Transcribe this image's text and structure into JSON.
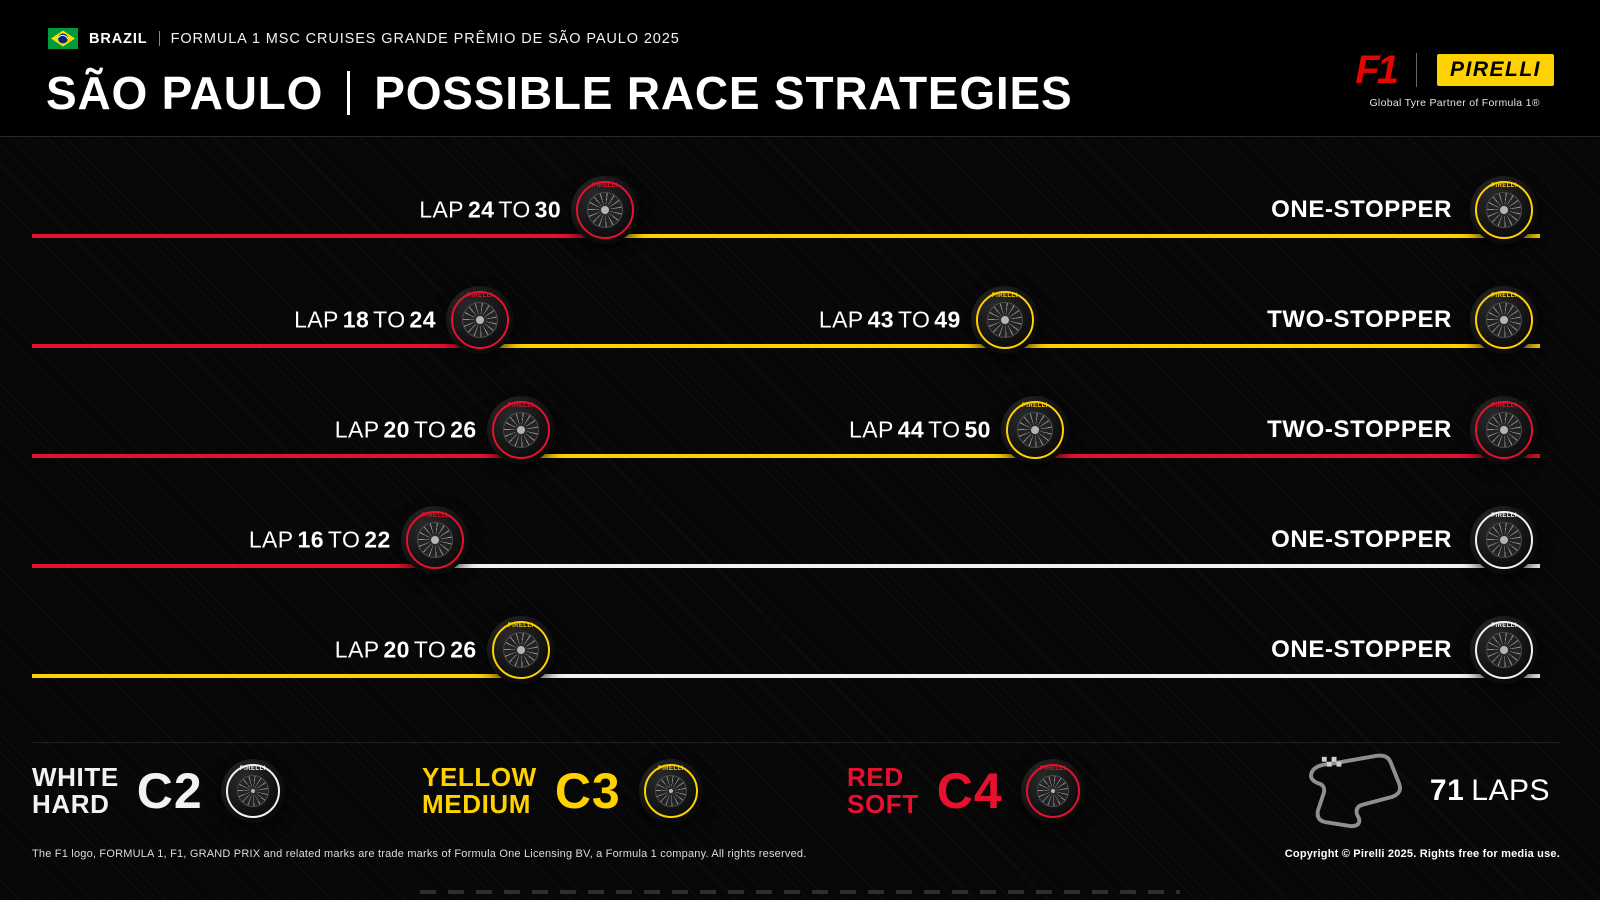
{
  "header": {
    "country": "BRAZIL",
    "event": "FORMULA 1 MSC CRUISES GRANDE PRÊMIO DE SÃO PAULO 2025",
    "location": "SÃO PAULO",
    "headline": "POSSIBLE RACE STRATEGIES",
    "f1_logo": "F1",
    "pirelli_logo": "PIRELLI",
    "partner_line": "Global Tyre Partner of Formula 1®"
  },
  "words": {
    "lap": "LAP",
    "to": "TO"
  },
  "tyre_brand": "PIRELLI",
  "compounds": {
    "soft": {
      "label": "SOFT",
      "color": "#e8112d"
    },
    "medium": {
      "label": "MEDIUM",
      "color": "#ffd100"
    },
    "hard": {
      "label": "HARD",
      "color": "#f2f2f2"
    }
  },
  "chart_data": {
    "type": "table",
    "title": "SÃO PAULO | POSSIBLE RACE STRATEGIES",
    "total_laps": 71,
    "strategies": [
      {
        "type": "ONE-STOPPER",
        "stints": [
          {
            "compound": "soft",
            "pit_window": "LAP 24 TO 30"
          },
          {
            "compound": "medium",
            "pit_window": null
          }
        ]
      },
      {
        "type": "TWO-STOPPER",
        "stints": [
          {
            "compound": "soft",
            "pit_window": "LAP 18 TO 24"
          },
          {
            "compound": "medium",
            "pit_window": "LAP 43 TO 49"
          },
          {
            "compound": "medium",
            "pit_window": null
          }
        ]
      },
      {
        "type": "TWO-STOPPER",
        "stints": [
          {
            "compound": "soft",
            "pit_window": "LAP 20 TO 26"
          },
          {
            "compound": "medium",
            "pit_window": "LAP 44 TO 50"
          },
          {
            "compound": "soft",
            "pit_window": null
          }
        ]
      },
      {
        "type": "ONE-STOPPER",
        "stints": [
          {
            "compound": "soft",
            "pit_window": "LAP 16 TO 22"
          },
          {
            "compound": "hard",
            "pit_window": null
          }
        ]
      },
      {
        "type": "ONE-STOPPER",
        "stints": [
          {
            "compound": "medium",
            "pit_window": "LAP 20 TO 26"
          },
          {
            "compound": "hard",
            "pit_window": null
          }
        ]
      }
    ]
  },
  "strategies": [
    {
      "type": "ONE-STOPPER",
      "stints": [
        {
          "compound": "soft",
          "end_pct": 38,
          "pit": {
            "from": "24",
            "to": "30"
          }
        },
        {
          "compound": "medium",
          "end_pct": 100
        }
      ]
    },
    {
      "type": "TWO-STOPPER",
      "stints": [
        {
          "compound": "soft",
          "end_pct": 29.7,
          "pit": {
            "from": "18",
            "to": "24"
          }
        },
        {
          "compound": "medium",
          "end_pct": 64.5,
          "pit": {
            "from": "43",
            "to": "49"
          }
        },
        {
          "compound": "medium",
          "end_pct": 100
        }
      ]
    },
    {
      "type": "TWO-STOPPER",
      "stints": [
        {
          "compound": "soft",
          "end_pct": 32.4,
          "pit": {
            "from": "20",
            "to": "26"
          }
        },
        {
          "compound": "medium",
          "end_pct": 66.5,
          "pit": {
            "from": "44",
            "to": "50"
          }
        },
        {
          "compound": "soft",
          "end_pct": 100
        }
      ]
    },
    {
      "type": "ONE-STOPPER",
      "stints": [
        {
          "compound": "soft",
          "end_pct": 26.7,
          "pit": {
            "from": "16",
            "to": "22"
          }
        },
        {
          "compound": "hard",
          "end_pct": 100
        }
      ]
    },
    {
      "type": "ONE-STOPPER",
      "stints": [
        {
          "compound": "medium",
          "end_pct": 32.4,
          "pit": {
            "from": "20",
            "to": "26"
          }
        },
        {
          "compound": "hard",
          "end_pct": 100
        }
      ]
    }
  ],
  "legend": {
    "items": [
      {
        "color_word": "WHITE",
        "compound_word": "HARD",
        "code": "C2",
        "compound": "hard"
      },
      {
        "color_word": "YELLOW",
        "compound_word": "MEDIUM",
        "code": "C3",
        "compound": "medium"
      },
      {
        "color_word": "RED",
        "compound_word": "SOFT",
        "code": "C4",
        "compound": "soft"
      }
    ],
    "laps_number": "71",
    "laps_word": "LAPS"
  },
  "footer": {
    "left": "The F1 logo, FORMULA 1, F1, GRAND PRIX and related marks are trade marks of Formula One Licensing BV, a Formula 1 company. All rights reserved.",
    "right": "Copyright © Pirelli 2025. Rights free for media use."
  }
}
